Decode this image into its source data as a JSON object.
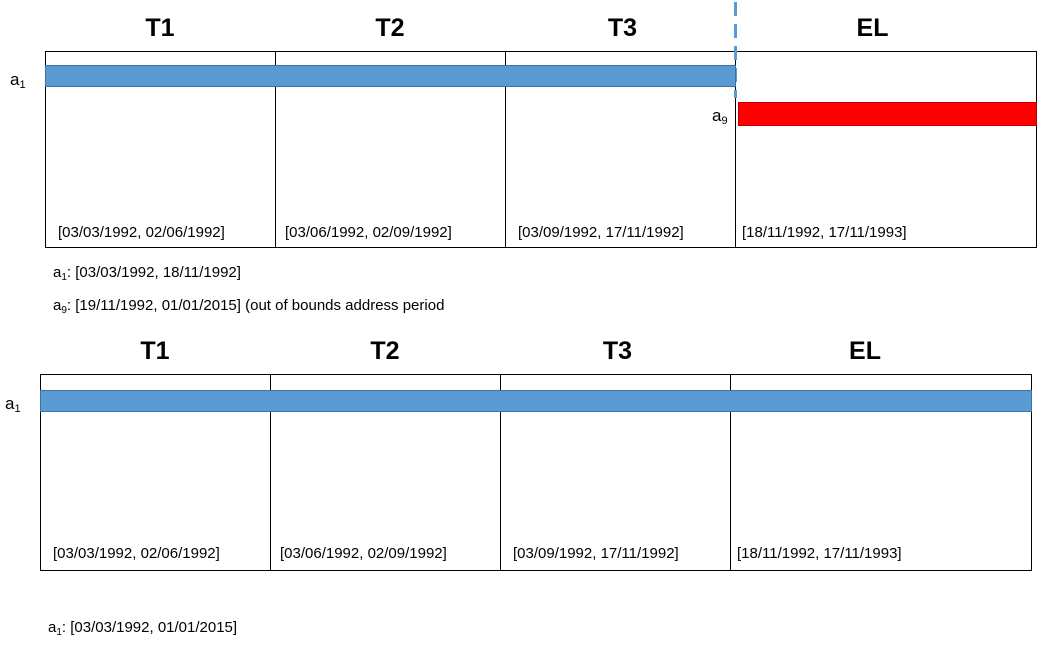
{
  "top": {
    "headers": [
      "T1",
      "T2",
      "T3",
      "EL"
    ],
    "ranges": [
      "[03/03/1992, 02/06/1992]",
      "[03/06/1992, 02/09/1992]",
      "[03/09/1992, 17/11/1992]",
      "[18/11/1992, 17/11/1993]"
    ],
    "bars": [
      {
        "label_base": "a",
        "label_sub": "1",
        "color": "#5b9bd5"
      },
      {
        "label_base": "a",
        "label_sub": "9",
        "color": "#ff0000"
      }
    ],
    "notes": [
      {
        "base": "a",
        "sub": "1",
        "text": ":   [03/03/1992, 18/11/1992]"
      },
      {
        "base": "a",
        "sub": "9",
        "text": ":    [19/11/1992, 01/01/2015] (out of bounds address period"
      }
    ]
  },
  "bottom": {
    "headers": [
      "T1",
      "T2",
      "T3",
      "EL"
    ],
    "ranges": [
      "[03/03/1992, 02/06/1992]",
      "[03/06/1992, 02/09/1992]",
      "[03/09/1992, 17/11/1992]",
      "[18/11/1992, 17/11/1993]"
    ],
    "bars": [
      {
        "label_base": "a",
        "label_sub": "1",
        "color": "#5b9bd5"
      }
    ],
    "notes": [
      {
        "base": "a",
        "sub": "1",
        "text": ": [03/03/1992, 01/01/2015]"
      }
    ]
  },
  "colors": {
    "bar_blue": "#5b9bd5",
    "bar_red": "#ff0000",
    "dashed_divider": "#5b9bd5"
  }
}
